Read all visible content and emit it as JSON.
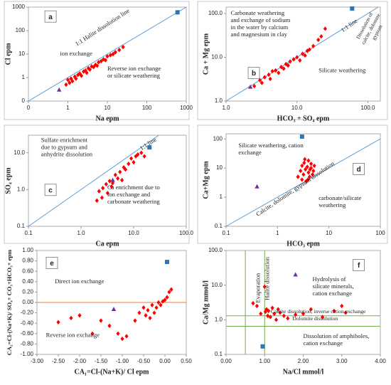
{
  "chart_data": [
    {
      "type": "scatter",
      "label": "a",
      "xlabel": "Na epm",
      "ylabel": "Cl epm",
      "xscale": "log",
      "yscale": "log",
      "xlim": [
        0.1,
        1000
      ],
      "ylim": [
        0.1,
        1000
      ],
      "xticks": [
        {
          "value": 0.1,
          "label": "0"
        },
        1,
        10,
        100,
        1000
      ],
      "yticks": [
        {
          "value": 0.1,
          "label": "0"
        },
        1,
        10,
        100,
        1000
      ],
      "diagonal": true,
      "diagonal_color": "#5b9bd5",
      "annotations": [
        "1:1 Halite dissolution line",
        "ion exchange",
        [
          "Reverse ion exchange",
          "or silicate weathering"
        ]
      ],
      "series": [
        {
          "marker": "diamond",
          "color": "#ff0000",
          "x": [
            0.9,
            1,
            1.1,
            1.2,
            1.3,
            1.5,
            1.6,
            1.8,
            2,
            2.2,
            2.5,
            2.8,
            3,
            3.3,
            3.6,
            4,
            4.5,
            5,
            5.5,
            6,
            7,
            8,
            9,
            10,
            12,
            14,
            16,
            20,
            25
          ],
          "y": [
            0.5,
            0.8,
            0.6,
            0.9,
            0.7,
            1.1,
            0.9,
            1.3,
            1.5,
            1.2,
            1.8,
            2,
            1.6,
            2.5,
            2.2,
            3,
            2.8,
            3.5,
            3.2,
            4.5,
            5,
            6,
            5.5,
            8,
            9,
            10,
            12,
            15,
            20
          ]
        },
        {
          "marker": "triangle",
          "color": "#7030a0",
          "x": [
            0.6
          ],
          "y": [
            0.3
          ]
        },
        {
          "marker": "square",
          "color": "#2e75b6",
          "x": [
            600
          ],
          "y": [
            600
          ]
        }
      ]
    },
    {
      "type": "scatter",
      "label": "b",
      "xlabel": "HCO₃ + SO₄ epm",
      "ylabel": "Ca + Mg epm",
      "xscale": "log",
      "yscale": "log",
      "xlim": [
        1,
        150
      ],
      "ylim": [
        1,
        140
      ],
      "xticks": [
        {
          "value": 1,
          "label": "1.0"
        },
        {
          "value": 10,
          "label": "10.0"
        },
        {
          "value": 100,
          "label": "100.0"
        }
      ],
      "yticks": [
        {
          "value": 1,
          "label": "1.0"
        },
        {
          "value": 10,
          "label": "10.0"
        },
        {
          "value": 100,
          "label": "100.0"
        }
      ],
      "diagonal": true,
      "diagonal_color": "#5b9bd5",
      "annotations": [
        [
          "Carbonate weathering",
          "and exchange of sodium",
          "in the water by calcium",
          "and magnesium in clay"
        ],
        "1:1 line",
        [
          "Dissolution of",
          "calcite, dolomite",
          "gypsum"
        ],
        "Silicate weathering"
      ],
      "series": [
        {
          "marker": "diamond",
          "color": "#ff0000",
          "x": [
            2.5,
            3,
            3.2,
            3.5,
            4,
            4.2,
            4.5,
            5,
            5.5,
            6,
            6.5,
            7,
            7.5,
            8,
            9,
            10,
            11,
            12,
            13,
            14,
            15,
            17,
            20,
            22,
            25
          ],
          "y": [
            2.2,
            3,
            2.6,
            3.5,
            4,
            3.2,
            4.8,
            5,
            4.4,
            6,
            5.5,
            7,
            6.5,
            8,
            9,
            10,
            8.5,
            12,
            11,
            14,
            15,
            18,
            25,
            30,
            45
          ]
        },
        {
          "marker": "triangle",
          "color": "#7030a0",
          "x": [
            2.2
          ],
          "y": [
            2.1
          ]
        },
        {
          "marker": "square",
          "color": "#2e75b6",
          "x": [
            60
          ],
          "y": [
            130
          ]
        }
      ]
    },
    {
      "type": "scatter",
      "label": "c",
      "xlabel": "Ca epm",
      "ylabel": "SO₄ epm",
      "xscale": "log",
      "yscale": "log",
      "xlim": [
        0.1,
        100
      ],
      "ylim": [
        0.1,
        30
      ],
      "xticks": [
        0.1,
        {
          "value": 1,
          "label": "1.0"
        },
        {
          "value": 10,
          "label": "10.0"
        },
        {
          "value": 100,
          "label": "100.0"
        }
      ],
      "yticks": [
        0.1,
        {
          "value": 1,
          "label": "1.0"
        },
        {
          "value": 10,
          "label": "10.0"
        }
      ],
      "diagonal": true,
      "diagonal_color": "#5b9bd5",
      "annotations": [
        [
          "Sulfate enrichment",
          "due to gypsum and",
          "anhydrite dissolution"
        ],
        "1:1 line",
        [
          "Ca enrichment due to",
          "ion exchange and",
          "carbonate weathering"
        ]
      ],
      "series": [
        {
          "marker": "diamond",
          "color": "#ff0000",
          "x": [
            2,
            2.2,
            2.5,
            2.6,
            3,
            3.2,
            3.5,
            3.8,
            4,
            4.5,
            5,
            5.5,
            6,
            6.5,
            7,
            8,
            9,
            10,
            11,
            12,
            14,
            16,
            20
          ],
          "y": [
            0.5,
            0.9,
            0.6,
            1.1,
            1.4,
            0.8,
            1.7,
            1.2,
            1.5,
            2.5,
            2,
            3,
            1.8,
            4,
            3.5,
            5,
            7,
            5.5,
            8,
            9,
            10,
            8,
            14
          ]
        },
        {
          "marker": "triangle",
          "color": "#7030a0",
          "x": [
            4
          ],
          "y": [
            1.8
          ]
        },
        {
          "marker": "square",
          "color": "#2e75b6",
          "x": [
            20
          ],
          "y": [
            14
          ]
        }
      ]
    },
    {
      "type": "scatter",
      "label": "d",
      "xlabel": "HCO₃ epm",
      "ylabel": "Ca+Mg epm",
      "xscale": "log",
      "yscale": "log",
      "xlim": [
        0.1,
        100
      ],
      "ylim": [
        0.1,
        150
      ],
      "xticks": [
        0.1,
        1,
        10,
        100
      ],
      "yticks": [
        0.1,
        1,
        10,
        100
      ],
      "diagonal": true,
      "diagonal_color": "#5b9bd5",
      "annotations": [
        [
          "Silicate weathering,  cation",
          "exchange"
        ],
        "Calcite, dolomite, gypsum dissolution",
        [
          "carbonate/silicate",
          "weathering"
        ]
      ],
      "series": [
        {
          "marker": "diamond",
          "color": "#ff0000",
          "x": [
            2.5,
            2.8,
            3,
            3,
            3.2,
            3.3,
            3.5,
            3.6,
            3.8,
            4,
            4,
            4.2,
            4.5,
            4.5,
            4.8,
            5,
            5.2,
            3.4,
            3.9,
            4.3
          ],
          "y": [
            5,
            8,
            4,
            12,
            6,
            15,
            9,
            3.5,
            11,
            7,
            18,
            5,
            10,
            14,
            6,
            8,
            12,
            20,
            4,
            9
          ]
        },
        {
          "marker": "triangle",
          "color": "#7030a0",
          "x": [
            0.4
          ],
          "y": [
            2.3
          ]
        },
        {
          "marker": "square",
          "color": "#2e75b6",
          "x": [
            3
          ],
          "y": [
            120
          ]
        }
      ]
    },
    {
      "type": "scatter",
      "label": "e",
      "xlabel": "CA₁=Cl-(Na+K)/ Cl epm",
      "ylabel": "CA₂=Cl-(Na+K)/ SO₄+ CO₃+HCO₃+ epm",
      "xscale": "linear",
      "yscale": "linear",
      "xlim": [
        -3,
        0.5
      ],
      "ylim": [
        -1,
        1
      ],
      "xticks": [
        {
          "value": -3,
          "label": "-3.00"
        },
        {
          "value": -2.5,
          "label": "-2.50"
        },
        {
          "value": -2,
          "label": "-2.00"
        },
        {
          "value": -1.5,
          "label": "-1.50"
        },
        {
          "value": -1,
          "label": "-1.00"
        },
        {
          "value": -0.5,
          "label": "-0.50"
        },
        {
          "value": 0,
          "label": "0.00"
        },
        {
          "value": 0.5,
          "label": "0.50"
        }
      ],
      "yticks": [
        {
          "value": -1,
          "label": "-1.00"
        },
        {
          "value": -0.8,
          "label": "-0.80"
        },
        {
          "value": -0.6,
          "label": "-0.60"
        },
        {
          "value": -0.4,
          "label": "-0.40"
        },
        {
          "value": -0.2,
          "label": "-0.20"
        },
        {
          "value": 0,
          "label": "0.00"
        },
        {
          "value": 0.2,
          "label": "0.20"
        },
        {
          "value": 0.4,
          "label": "0.40"
        },
        {
          "value": 0.6,
          "label": "0.60"
        },
        {
          "value": 0.8,
          "label": "0.80"
        },
        {
          "value": 1,
          "label": "1.00"
        }
      ],
      "hlines": [
        0
      ],
      "hline_color": "#ed7d31",
      "annotations": [
        "Direct ion exchange",
        "Reverse  ion exchange"
      ],
      "series": [
        {
          "marker": "diamond",
          "color": "#ff0000",
          "x": [
            -2.5,
            -2.2,
            -2,
            -1.7,
            -1.5,
            -1.3,
            -1.1,
            -1,
            -0.9,
            -0.7,
            -0.6,
            -0.5,
            -0.45,
            -0.4,
            -0.35,
            -0.3,
            -0.25,
            -0.2,
            -0.15,
            -0.1,
            -0.05,
            0,
            0.05,
            0.1,
            0.15
          ],
          "y": [
            -0.38,
            -0.3,
            -0.25,
            -0.6,
            -0.35,
            -0.45,
            -0.6,
            -0.7,
            -0.65,
            -0.35,
            -0.2,
            -0.1,
            -0.25,
            -0.15,
            -0.3,
            -0.05,
            -0.2,
            -0.1,
            0,
            -0.05,
            0.02,
            0.05,
            0.1,
            0.2,
            0.25
          ]
        },
        {
          "marker": "triangle",
          "color": "#7030a0",
          "x": [
            -1.2
          ],
          "y": [
            -0.13
          ]
        },
        {
          "marker": "square",
          "color": "#2e75b6",
          "x": [
            0.05
          ],
          "y": [
            0.78
          ]
        }
      ]
    },
    {
      "type": "scatter",
      "label": "f",
      "xlabel": "Na/Cl mmol/l",
      "ylabel": "Ca/Mg mmol/l",
      "xscale": "linear",
      "yscale": "log",
      "xlim": [
        0,
        4
      ],
      "ylim": [
        0.1,
        100
      ],
      "xticks": [
        {
          "value": 0,
          "label": "0.00"
        },
        {
          "value": 1,
          "label": "1.00"
        },
        {
          "value": 2,
          "label": "2.00"
        },
        {
          "value": 3,
          "label": "3.00"
        },
        {
          "value": 4,
          "label": "4.00"
        }
      ],
      "yticks": [
        0.1,
        {
          "value": 1,
          "label": "1.0"
        },
        {
          "value": 10,
          "label": "10.0"
        },
        {
          "value": 100,
          "label": "100.0"
        }
      ],
      "vlines": [
        0.5,
        1
      ],
      "hlines": [
        1.3,
        0.65
      ],
      "vline_color": "#70ad47",
      "hline_color": "#70ad47",
      "annotations": [
        "Evaporation",
        "Halite dissolution",
        [
          "Hydrolysis of",
          "silicate minerals,",
          "cation exchange"
        ],
        "Calcite dissolution, inverse cation exchange",
        "Dolomite dissolution",
        [
          "Dissolution of amphiboles,",
          "cation exchange"
        ]
      ],
      "series": [
        {
          "marker": "diamond",
          "color": "#ff0000",
          "x": [
            0.7,
            0.8,
            0.9,
            1,
            1.05,
            1.1,
            1.15,
            1.2,
            1.25,
            1.3,
            1.4,
            1.5,
            1.6,
            1.8,
            2,
            2.2,
            2.5,
            2.8,
            3,
            3.1,
            1.02,
            1.08,
            1.35
          ],
          "y": [
            3,
            2.5,
            1.5,
            9,
            2,
            1.8,
            1.2,
            2.2,
            1.5,
            1,
            1.6,
            1.3,
            1.1,
            1.4,
            1.5,
            2,
            1.2,
            1.8,
            2.5,
            1.6,
            1.7,
            1.3,
            2
          ]
        },
        {
          "marker": "triangle",
          "color": "#7030a0",
          "x": [
            1.8
          ],
          "y": [
            20
          ]
        },
        {
          "marker": "square",
          "color": "#2e75b6",
          "x": [
            0.95
          ],
          "y": [
            0.17
          ]
        }
      ]
    }
  ]
}
